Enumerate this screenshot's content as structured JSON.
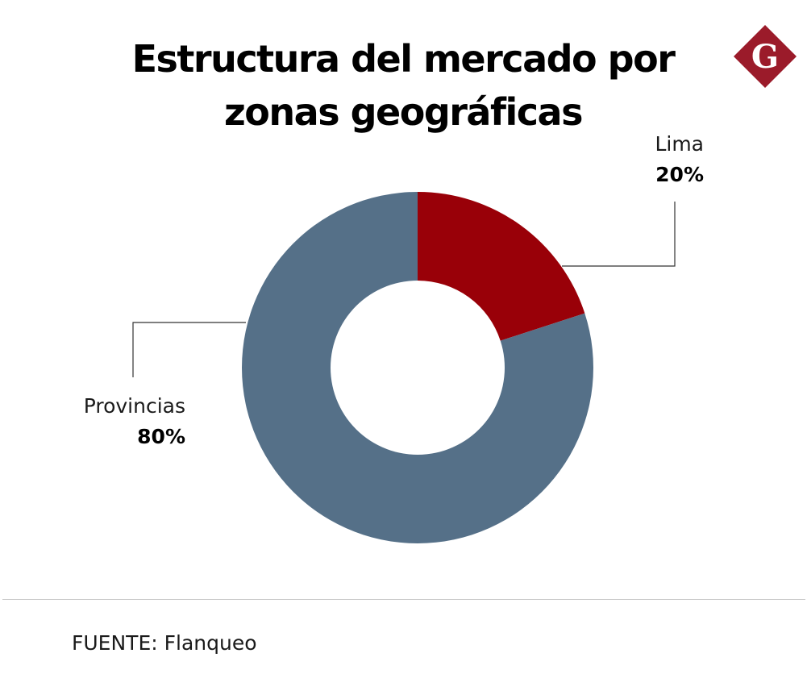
{
  "title_line1": "Estructura del mercado por",
  "title_line2": "zonas geográficas",
  "logo": {
    "letter": "G",
    "color": "#9b1b2a"
  },
  "chart_data": {
    "type": "pie",
    "donut": true,
    "start_angle_deg": 0,
    "direction": "clockwise",
    "slices": [
      {
        "label": "Lima",
        "value": 20,
        "value_label": "20%",
        "color": "#990008"
      },
      {
        "label": "Provincias",
        "value": 80,
        "value_label": "80%",
        "color": "#557088"
      }
    ],
    "leader_line_color": "#333333"
  },
  "source_label": "FUENTE:",
  "source_value": "Flanqueo"
}
